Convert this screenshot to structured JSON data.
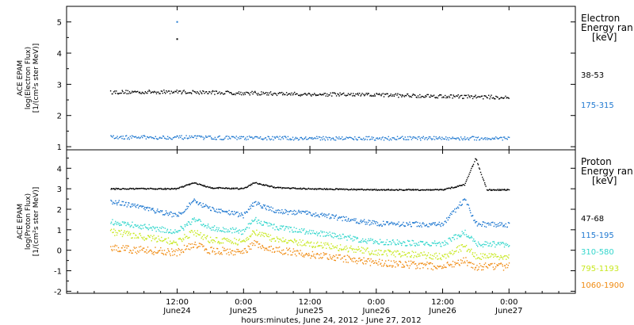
{
  "chart_data": [
    {
      "type": "scatter",
      "panel": "electron",
      "ylabel_lines": [
        "ACE EPAM",
        "log(Electron Flux)",
        "[1/(cm²s ster MeV)]"
      ],
      "ylim": [
        0.9,
        5.5
      ],
      "yticks": [
        1,
        2,
        3,
        4,
        5
      ],
      "legend_title_lines": [
        "Electron",
        "Energy ran",
        "[keV]"
      ],
      "series": [
        {
          "name": "38-53",
          "color": "#000000",
          "x": [
            0,
            12,
            24,
            36,
            48,
            60,
            72
          ],
          "values": [
            2.75,
            2.76,
            2.72,
            2.68,
            2.66,
            2.62,
            2.58
          ]
        },
        {
          "name": "175-315",
          "color": "#1f78d0",
          "x": [
            0,
            12,
            24,
            36,
            48,
            60,
            72
          ],
          "values": [
            1.3,
            1.3,
            1.28,
            1.27,
            1.27,
            1.27,
            1.27
          ]
        }
      ],
      "outliers": [
        [
          12,
          5.0
        ],
        [
          12,
          4.45
        ]
      ]
    },
    {
      "type": "scatter",
      "panel": "proton",
      "ylabel_lines": [
        "ACE EPAM",
        "log(Proton Flux)",
        "[1/(cm²s ster MeV)]"
      ],
      "ylim": [
        -2.1,
        4.9
      ],
      "yticks": [
        -2,
        -1,
        0,
        1,
        2,
        3,
        4
      ],
      "legend_title_lines": [
        "Proton",
        "Energy ran",
        "[keV]"
      ],
      "series": [
        {
          "name": "47-68",
          "color": "#000000",
          "x": [
            0,
            12,
            15,
            18,
            24,
            26,
            30,
            36,
            48,
            60,
            64,
            66,
            68,
            72
          ],
          "values": [
            3.0,
            3.0,
            3.3,
            3.05,
            3.0,
            3.3,
            3.05,
            3.0,
            2.95,
            2.95,
            3.2,
            4.5,
            2.95,
            2.95
          ]
        },
        {
          "name": "115-195",
          "color": "#1f78d0",
          "x": [
            0,
            12,
            15,
            18,
            24,
            26,
            30,
            36,
            48,
            60,
            64,
            66,
            68,
            72
          ],
          "values": [
            2.4,
            1.7,
            2.4,
            2.0,
            1.7,
            2.3,
            1.9,
            1.8,
            1.3,
            1.25,
            2.5,
            1.3,
            1.25,
            1.25
          ]
        },
        {
          "name": "310-580",
          "color": "#33d6cc",
          "x": [
            0,
            12,
            15,
            18,
            24,
            26,
            30,
            36,
            48,
            60,
            64,
            66,
            68,
            72
          ],
          "values": [
            1.4,
            0.9,
            1.5,
            1.1,
            0.9,
            1.5,
            1.1,
            0.9,
            0.4,
            0.3,
            0.9,
            0.3,
            0.3,
            0.3
          ]
        },
        {
          "name": "795-1193",
          "color": "#c8e820",
          "x": [
            0,
            12,
            15,
            18,
            24,
            26,
            30,
            36,
            48,
            60,
            64,
            66,
            68,
            72
          ],
          "values": [
            0.9,
            0.4,
            0.9,
            0.5,
            0.4,
            0.9,
            0.5,
            0.3,
            -0.1,
            -0.3,
            0.2,
            -0.3,
            -0.3,
            -0.3
          ]
        },
        {
          "name": "1060-1900",
          "color": "#f08a10",
          "x": [
            0,
            12,
            15,
            18,
            24,
            26,
            30,
            36,
            48,
            60,
            64,
            66,
            68,
            72
          ],
          "values": [
            0.1,
            -0.1,
            0.3,
            0.0,
            -0.1,
            0.3,
            0.0,
            -0.2,
            -0.6,
            -0.8,
            -0.5,
            -0.8,
            -0.8,
            -0.8
          ]
        }
      ]
    }
  ],
  "x_axis": {
    "xlim": [
      -8,
      84
    ],
    "ticks": [
      {
        "x": 12,
        "line1": "12:00",
        "line2": "June24"
      },
      {
        "x": 24,
        "line1": "0:00",
        "line2": "June25"
      },
      {
        "x": 36,
        "line1": "12:00",
        "line2": "June25"
      },
      {
        "x": 48,
        "line1": "0:00",
        "line2": "June26"
      },
      {
        "x": 60,
        "line1": "12:00",
        "line2": "June26"
      },
      {
        "x": 72,
        "line1": "0:00",
        "line2": "June27"
      }
    ],
    "xlabel": "hours:minutes, June 24, 2012 - June 27, 2012"
  }
}
